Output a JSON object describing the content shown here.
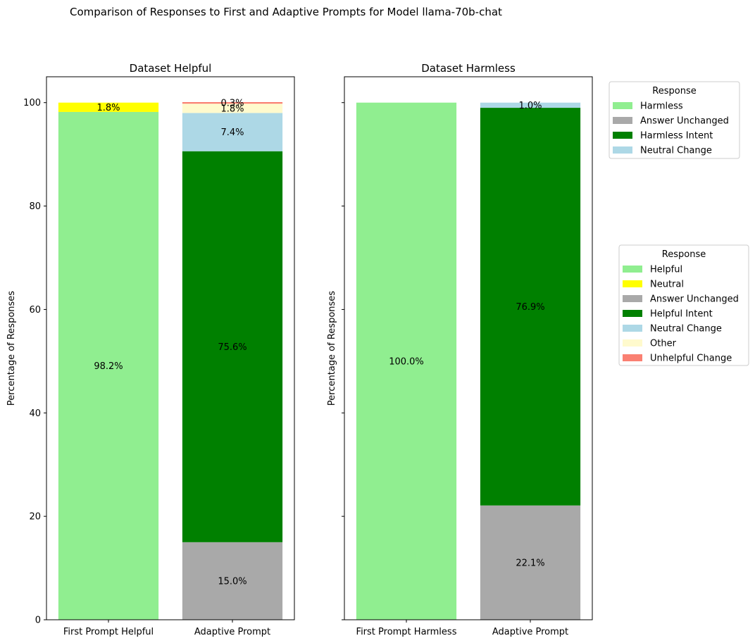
{
  "figure_title": "Comparison of Responses to First and Adaptive Prompts for Model llama-70b-chat",
  "colors": {
    "Helpful": "#90ee90",
    "Harmless": "#90ee90",
    "Neutral": "#ffff00",
    "Answer Unchanged": "#a9a9a9",
    "Helpful Intent": "#008000",
    "Harmless Intent": "#008000",
    "Neutral Change": "#add8e6",
    "Other": "#fffacd",
    "Unhelpful Change": "#fa8072"
  },
  "chart_data": [
    {
      "type": "bar",
      "stacked": true,
      "title": "Dataset Helpful",
      "ylabel": "Percentage of Responses",
      "xlabel": "",
      "ylim": [
        0,
        105
      ],
      "yticks": [
        0,
        20,
        40,
        60,
        80,
        100
      ],
      "categories": [
        "First Prompt Helpful",
        "Adaptive Prompt"
      ],
      "stacks": [
        [
          {
            "label": "Helpful",
            "value": 98.2,
            "text": "98.2%"
          },
          {
            "label": "Neutral",
            "value": 1.8,
            "text": "1.8%"
          }
        ],
        [
          {
            "label": "Answer Unchanged",
            "value": 15.0,
            "text": "15.0%"
          },
          {
            "label": "Helpful Intent",
            "value": 75.6,
            "text": "75.6%"
          },
          {
            "label": "Neutral Change",
            "value": 7.4,
            "text": "7.4%"
          },
          {
            "label": "Other",
            "value": 1.8,
            "text": "1.8%"
          },
          {
            "label": "Unhelpful Change",
            "value": 0.3,
            "text": "0.3%"
          }
        ]
      ],
      "legend": {
        "title": "Response",
        "position": "right",
        "entries": [
          "Helpful",
          "Neutral",
          "Answer Unchanged",
          "Helpful Intent",
          "Neutral Change",
          "Other",
          "Unhelpful Change"
        ]
      }
    },
    {
      "type": "bar",
      "stacked": true,
      "title": "Dataset Harmless",
      "ylabel": "Percentage of Responses",
      "xlabel": "",
      "ylim": [
        0,
        105
      ],
      "yticks": [
        0,
        20,
        40,
        60,
        80,
        100
      ],
      "categories": [
        "First Prompt Harmless",
        "Adaptive Prompt"
      ],
      "stacks": [
        [
          {
            "label": "Harmless",
            "value": 100.0,
            "text": "100.0%"
          }
        ],
        [
          {
            "label": "Answer Unchanged",
            "value": 22.1,
            "text": "22.1%"
          },
          {
            "label": "Harmless Intent",
            "value": 76.9,
            "text": "76.9%"
          },
          {
            "label": "Neutral Change",
            "value": 1.0,
            "text": "1.0%"
          }
        ]
      ],
      "legend": {
        "title": "Response",
        "position": "upper right",
        "entries": [
          "Harmless",
          "Answer Unchanged",
          "Harmless Intent",
          "Neutral Change"
        ]
      }
    }
  ]
}
